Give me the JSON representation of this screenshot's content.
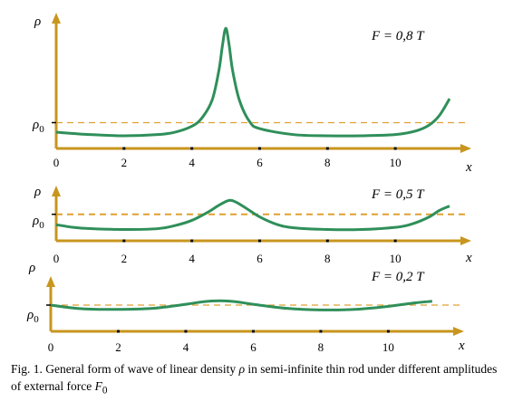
{
  "colors": {
    "axis": "#c8961e",
    "curve": "#2f8f5a",
    "reference": "#e0a030",
    "text": "#000000"
  },
  "chart_data": [
    {
      "type": "line",
      "title": "F = 0,8 T",
      "xlabel": "x",
      "ylabel": "ρ",
      "reference_label": "ρ0",
      "xlim": [
        0,
        11.6
      ],
      "ylim": [
        0,
        1
      ],
      "x_ticks": [
        "0",
        "2",
        "4",
        "6",
        "8",
        "10"
      ],
      "reference_level": 0.11,
      "series": [
        {
          "x": [
            0,
            1,
            2,
            3,
            3.5,
            4,
            4.3,
            4.6,
            4.8,
            4.9,
            5,
            5.1,
            5.2,
            5.4,
            5.7,
            6,
            7,
            8,
            9,
            10,
            10.6,
            11,
            11.3,
            11.6
          ],
          "y": [
            0.03,
            0.01,
            0,
            0.01,
            0.03,
            0.08,
            0.15,
            0.3,
            0.55,
            0.75,
            0.9,
            0.76,
            0.55,
            0.3,
            0.12,
            0.06,
            0.01,
            0,
            0,
            0.01,
            0.04,
            0.09,
            0.17,
            0.31
          ]
        }
      ]
    },
    {
      "type": "line",
      "title": "F = 0,5 T",
      "xlabel": "x",
      "ylabel": "ρ",
      "reference_label": "ρ0",
      "xlim": [
        0,
        11.6
      ],
      "ylim": [
        0,
        1
      ],
      "x_ticks": [
        "0",
        "2",
        "4",
        "6",
        "8",
        "10"
      ],
      "reference_level": 0.36,
      "series": [
        {
          "x": [
            0,
            0.5,
            1,
            2,
            3,
            3.5,
            4,
            4.5,
            4.8,
            5.1,
            5.3,
            5.6,
            6,
            6.5,
            7,
            8,
            9,
            10,
            10.5,
            11,
            11.3,
            11.6
          ],
          "y": [
            0.12,
            0.06,
            0.03,
            0.01,
            0.03,
            0.1,
            0.22,
            0.42,
            0.57,
            0.68,
            0.64,
            0.5,
            0.3,
            0.13,
            0.05,
            0.01,
            0.01,
            0.06,
            0.14,
            0.3,
            0.45,
            0.55
          ]
        }
      ]
    },
    {
      "type": "line",
      "title": "F = 0,2 T",
      "xlabel": "x",
      "ylabel": "ρ",
      "reference_label": "ρ0",
      "xlim": [
        0,
        11.6
      ],
      "ylim": [
        0,
        1
      ],
      "x_ticks": [
        "0",
        "2",
        "4",
        "6",
        "8",
        "10"
      ],
      "reference_level": 0.25,
      "series": [
        {
          "x": [
            0,
            0.5,
            1,
            2,
            3,
            4,
            4.5,
            5,
            5.5,
            6,
            7,
            8,
            9,
            10,
            10.8,
            11.3
          ],
          "y": [
            0.25,
            0.16,
            0.1,
            0.08,
            0.12,
            0.28,
            0.38,
            0.42,
            0.38,
            0.28,
            0.12,
            0.06,
            0.08,
            0.2,
            0.34,
            0.4
          ]
        }
      ]
    }
  ],
  "caption": {
    "prefix": "Fig. 1. General form of wave of linear density",
    "symbol_rho": "ρ",
    "middle": "in semi-infinite thin rod under different amplitudes of external force",
    "symbol_force": "F",
    "symbol_force_sub": "0"
  }
}
